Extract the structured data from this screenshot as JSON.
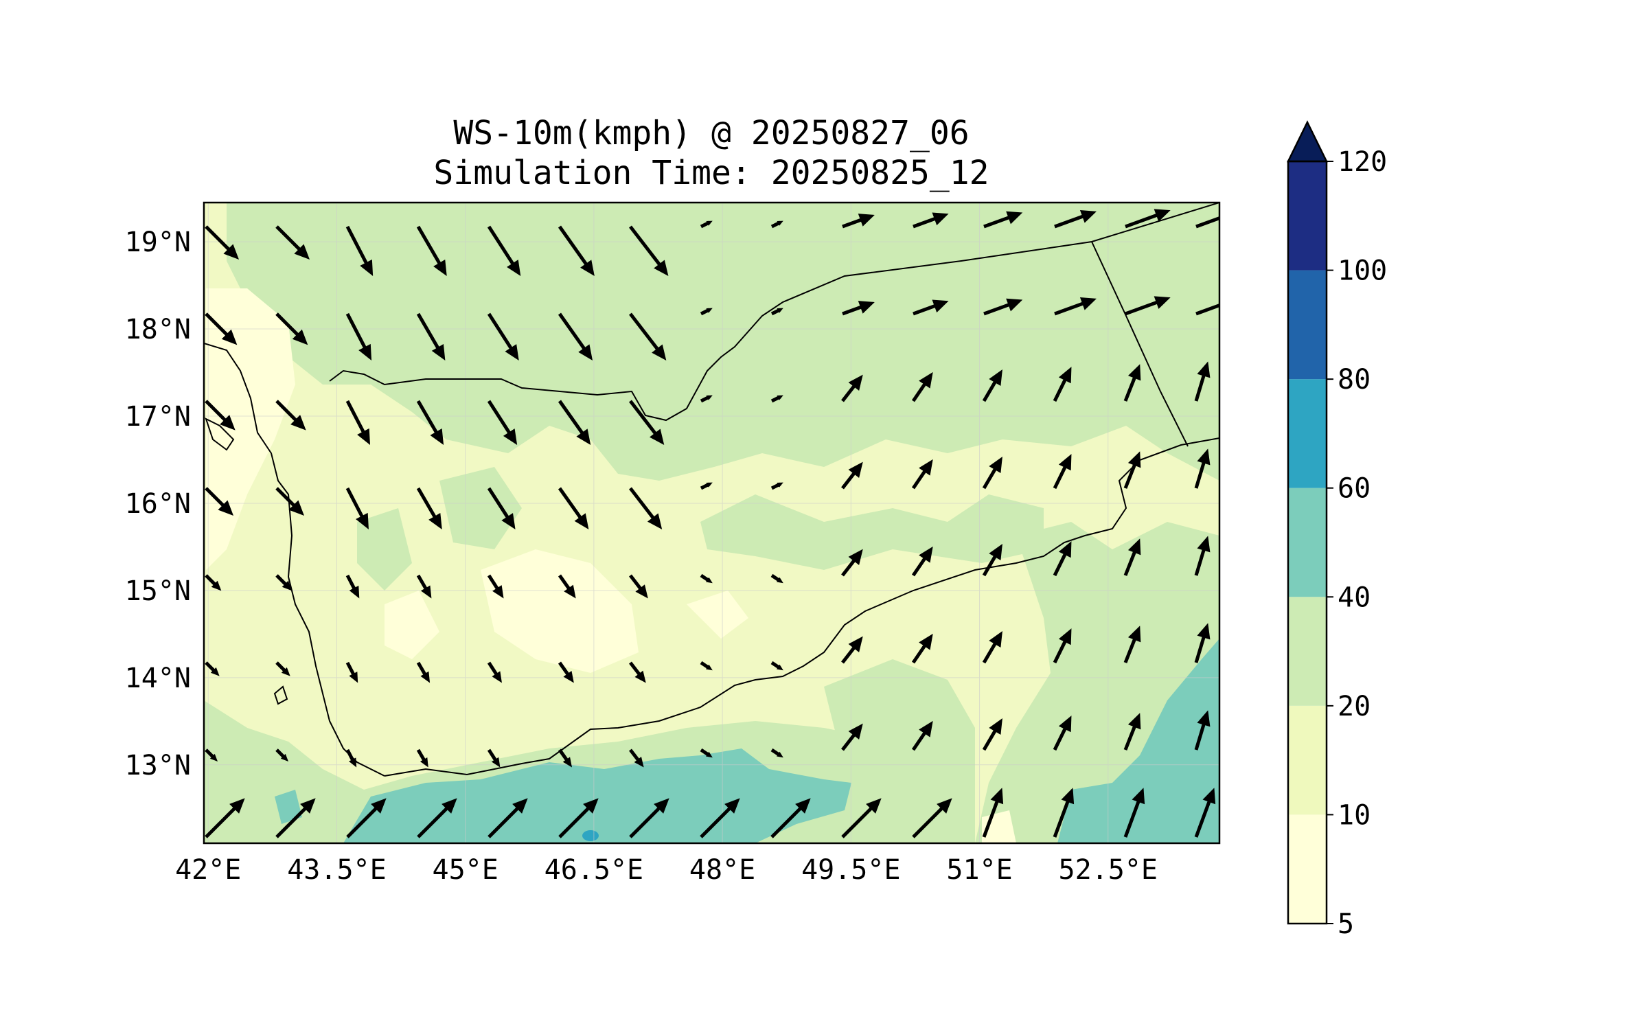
{
  "title_line1": "WS-10m(kmph) @ 20250827_06",
  "title_line2": "Simulation Time: 20250825_12",
  "map": {
    "lon_range": [
      41.95,
      53.8
    ],
    "lat_range": [
      12.1,
      19.45
    ],
    "x_ticks": [
      "42°E",
      "43.5°E",
      "45°E",
      "46.5°E",
      "48°E",
      "49.5°E",
      "51°E",
      "52.5°E"
    ],
    "x_tick_values": [
      42,
      43.5,
      45,
      46.5,
      48,
      49.5,
      51,
      52.5
    ],
    "y_ticks": [
      "19°N",
      "18°N",
      "17°N",
      "16°N",
      "15°N",
      "14°N",
      "13°N"
    ],
    "y_tick_values": [
      19,
      18,
      17,
      16,
      15,
      14,
      13
    ],
    "grid": true
  },
  "colorbar": {
    "levels": [
      "5",
      "10",
      "20",
      "40",
      "60",
      "80",
      "100",
      "120"
    ],
    "colors": [
      "#ffffd9",
      "#eff9bd",
      "#cdebb4",
      "#7ccdbb",
      "#2ea5c2",
      "#2164aa",
      "#1d2d83",
      "#081d58"
    ],
    "extend": "max"
  },
  "wind_field": {
    "description_free": true,
    "dominant_north": "south-southeast flow over northwest, southwest to northeast over eastern plateau",
    "dominant_south": "strong southwest monsoon flow along the Gulf of Aden coast"
  },
  "colors": {
    "land_base": "#f1f9c4",
    "zone_20_40": "#cdebb4",
    "zone_40_60": "#7ccdbb",
    "zone_5_10": "#ffffd9",
    "coastline": "#000000",
    "arrow": "#000000"
  }
}
